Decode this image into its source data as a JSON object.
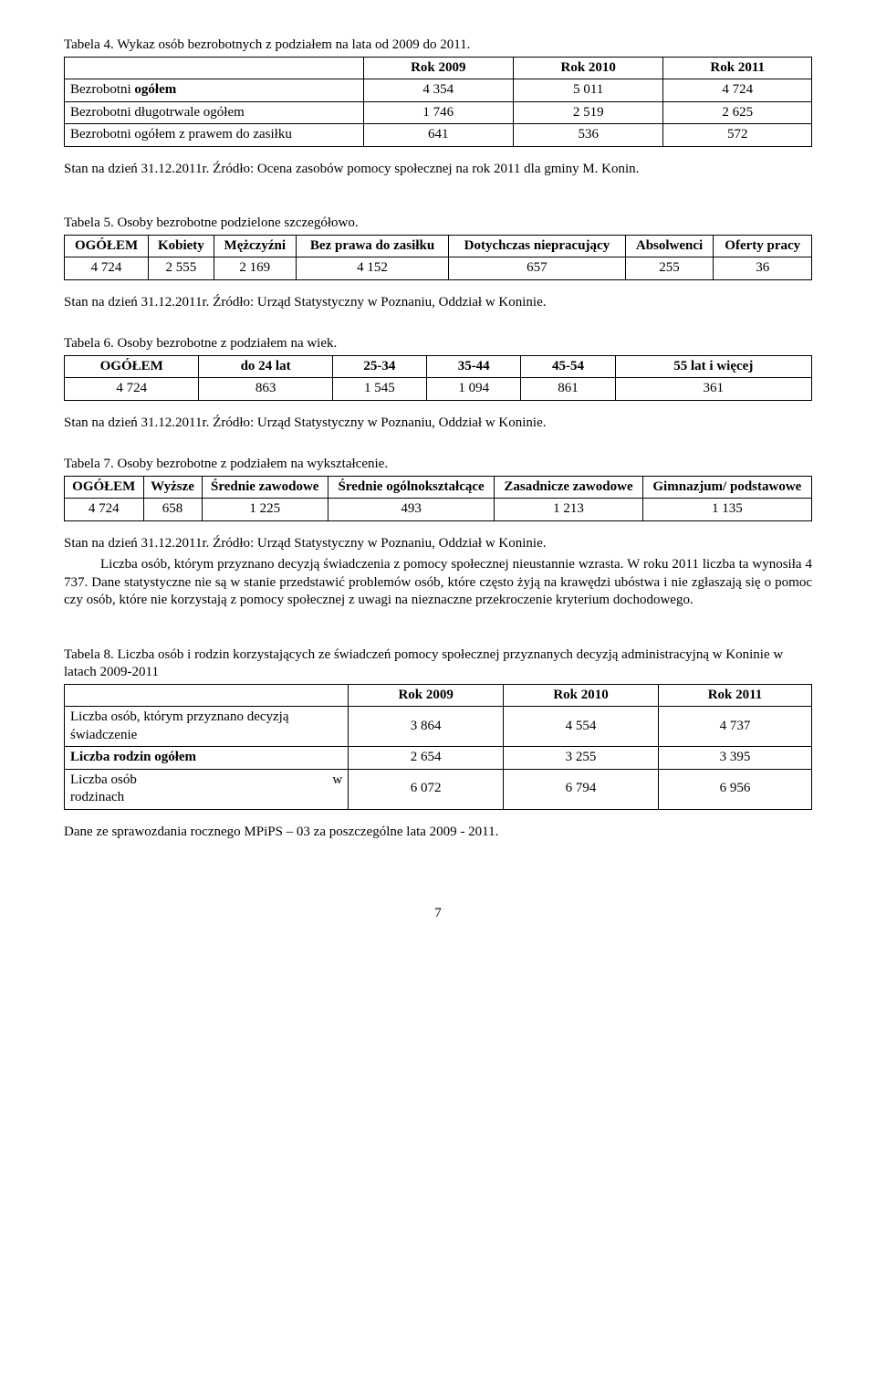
{
  "t4": {
    "caption": "Tabela 4. Wykaz osób bezrobotnych z podziałem na lata od 2009 do 2011.",
    "headers": [
      "",
      "Rok 2009",
      "Rok 2010",
      "Rok 2011"
    ],
    "rows": [
      {
        "label": "Bezrobotni ogółem",
        "bold": true,
        "c": [
          "4 354",
          "5 011",
          "4 724"
        ]
      },
      {
        "label": "Bezrobotni długotrwale ogółem",
        "bold": false,
        "c": [
          "1 746",
          "2 519",
          "2 625"
        ]
      },
      {
        "label": "Bezrobotni ogółem z prawem do zasiłku",
        "bold": false,
        "c": [
          "641",
          "536",
          "572"
        ]
      }
    ],
    "source": "Stan na dzień 31.12.2011r. Źródło: Ocena zasobów pomocy społecznej na rok 2011 dla gminy M. Konin."
  },
  "t5": {
    "caption": "Tabela 5. Osoby bezrobotne podzielone szczegółowo.",
    "headers": [
      "OGÓŁEM",
      "Kobiety",
      "Mężczyźni",
      "Bez prawa do zasiłku",
      "Dotychczas niepracujący",
      "Absolwenci",
      "Oferty pracy"
    ],
    "row": [
      "4 724",
      "2 555",
      "2 169",
      "4 152",
      "657",
      "255",
      "36"
    ],
    "source": "Stan na dzień 31.12.2011r. Źródło: Urząd Statystyczny w Poznaniu, Oddział w Koninie."
  },
  "t6": {
    "caption": "Tabela 6. Osoby bezrobotne z podziałem na wiek.",
    "headers": [
      "OGÓŁEM",
      "do 24 lat",
      "25-34",
      "35-44",
      "45-54",
      "55 lat i więcej"
    ],
    "row": [
      "4 724",
      "863",
      "1 545",
      "1 094",
      "861",
      "361"
    ],
    "source": "Stan na dzień 31.12.2011r. Źródło: Urząd Statystyczny w Poznaniu, Oddział w Koninie."
  },
  "t7": {
    "caption": "Tabela 7. Osoby bezrobotne z podziałem na wykształcenie.",
    "headers": [
      "OGÓŁEM",
      "Wyższe",
      "Średnie zawodowe",
      "Średnie ogólnokształcące",
      "Zasadnicze zawodowe",
      "Gimnazjum/ podstawowe"
    ],
    "row": [
      "4 724",
      "658",
      "1 225",
      "493",
      "1 213",
      "1 135"
    ],
    "source": "Stan na dzień 31.12.2011r. Źródło: Urząd Statystyczny w Poznaniu, Oddział w Koninie."
  },
  "para1": "Liczba osób, którym przyznano decyzją świadczenia z pomocy społecznej nieustannie wzrasta. W roku 2011 liczba ta wynosiła 4 737. Dane statystyczne nie są w stanie przedstawić problemów osób, które często żyją na krawędzi ubóstwa i nie zgłaszają się o pomoc czy osób, które nie korzystają z pomocy społecznej z uwagi na nieznaczne przekroczenie kryterium dochodowego.",
  "t8": {
    "caption": "Tabela 8. Liczba osób i rodzin korzystających ze świadczeń pomocy społecznej przyznanych decyzją administracyjną w Koninie w latach 2009-2011",
    "headers": [
      "",
      "Rok 2009",
      "Rok 2010",
      "Rok 2011"
    ],
    "rows": [
      {
        "labelA": "Liczba osób, którym przyznano decyzją świadczenie",
        "labelB": "",
        "bold": false,
        "c": [
          "3 864",
          "4 554",
          "4 737"
        ]
      },
      {
        "labelA": "Liczba rodzin ogółem",
        "labelB": "",
        "bold": true,
        "c": [
          "2 654",
          "3 255",
          "3 395"
        ]
      },
      {
        "labelA": "Liczba osób",
        "labelB": "w",
        "label2": "rodzinach",
        "bold": false,
        "c": [
          "6 072",
          "6 794",
          "6 956"
        ]
      }
    ],
    "source": "Dane ze sprawozdania rocznego MPiPS – 03 za poszczególne lata 2009 - 2011."
  },
  "page": "7"
}
